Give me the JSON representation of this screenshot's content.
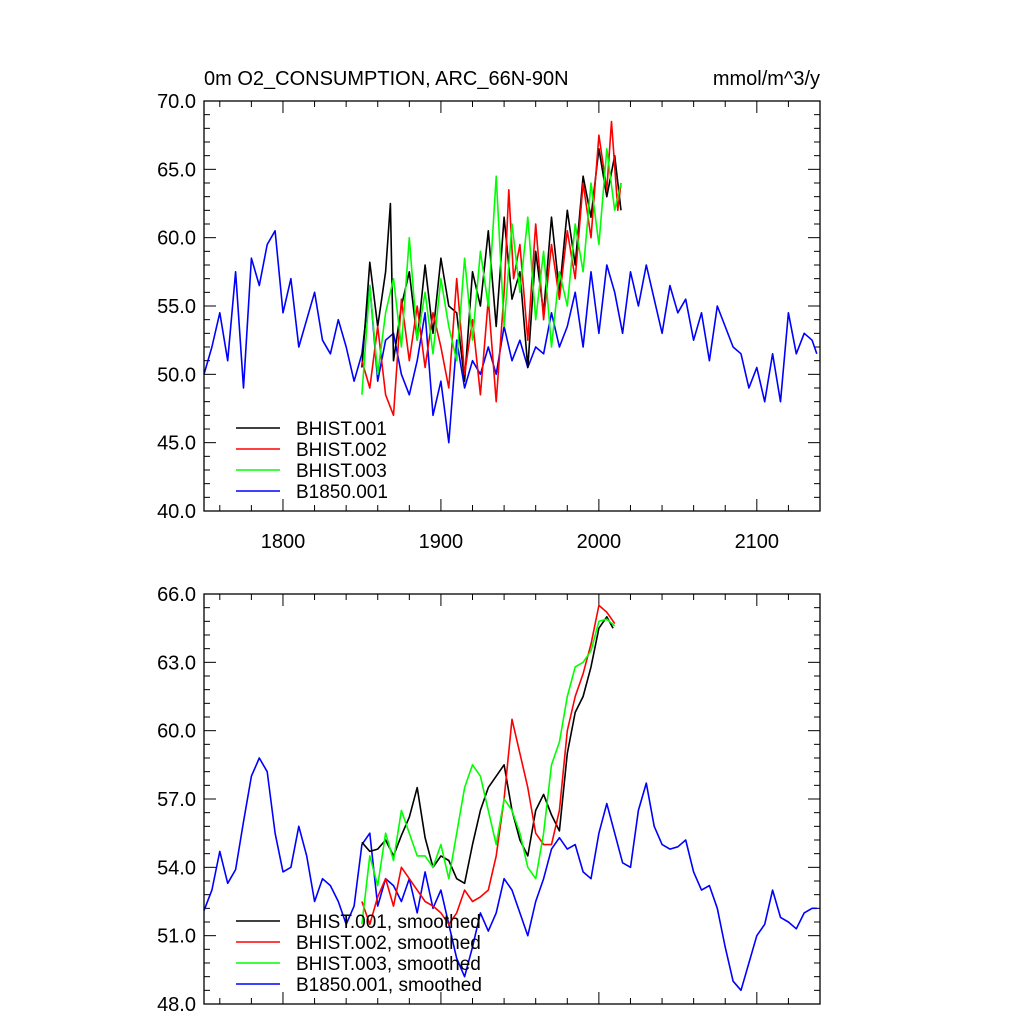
{
  "chart_data": [
    {
      "type": "line",
      "title": "0m O2_CONSUMPTION, ARC_66N-90N",
      "units": "mmol/m^3/y",
      "xlim": [
        1750,
        2140
      ],
      "ylim": [
        40,
        70
      ],
      "xticks": [
        1800,
        1900,
        2000,
        2100
      ],
      "yticks": [
        40,
        45,
        50,
        55,
        60,
        65,
        70
      ],
      "xtick_labels": [
        "1800",
        "1900",
        "2000",
        "2100"
      ],
      "ytick_labels": [
        "40.0",
        "45.0",
        "50.0",
        "55.0",
        "60.0",
        "65.0",
        "70.0"
      ],
      "legend_position": "bottom-left",
      "series": [
        {
          "name": "BHIST.001",
          "color": "#000000",
          "x": [
            1850,
            1855,
            1860,
            1865,
            1868,
            1870,
            1875,
            1880,
            1885,
            1890,
            1895,
            1900,
            1905,
            1910,
            1915,
            1920,
            1925,
            1930,
            1935,
            1940,
            1945,
            1950,
            1955,
            1960,
            1965,
            1970,
            1975,
            1980,
            1985,
            1990,
            1995,
            2000,
            2005,
            2010,
            2014
          ],
          "y": [
            50.5,
            58.2,
            53.5,
            57.5,
            62.5,
            51.0,
            55.0,
            57.5,
            52.5,
            58.0,
            53.0,
            58.5,
            55.0,
            54.5,
            49.5,
            57.5,
            55.0,
            60.5,
            53.5,
            61.5,
            55.5,
            57.5,
            50.5,
            59.0,
            54.5,
            61.5,
            56.0,
            62.0,
            58.0,
            64.5,
            61.5,
            66.5,
            63.0,
            66.0,
            62.0
          ]
        },
        {
          "name": "BHIST.002",
          "color": "#ff0000",
          "x": [
            1850,
            1855,
            1860,
            1865,
            1870,
            1875,
            1880,
            1885,
            1890,
            1895,
            1900,
            1905,
            1910,
            1915,
            1920,
            1925,
            1930,
            1935,
            1940,
            1943,
            1946,
            1950,
            1955,
            1960,
            1965,
            1970,
            1975,
            1980,
            1985,
            1990,
            1995,
            2000,
            2005,
            2008,
            2012,
            2014
          ],
          "y": [
            51.0,
            49.0,
            53.5,
            48.5,
            47.0,
            55.5,
            51.0,
            55.0,
            50.5,
            54.5,
            52.0,
            49.0,
            57.0,
            50.0,
            54.0,
            48.5,
            55.5,
            48.0,
            56.0,
            63.5,
            57.0,
            59.5,
            52.5,
            61.0,
            54.0,
            59.5,
            55.5,
            60.5,
            57.0,
            64.0,
            60.0,
            67.5,
            63.5,
            68.5,
            62.0,
            64.0
          ]
        },
        {
          "name": "BHIST.003",
          "color": "#00ff00",
          "x": [
            1850,
            1855,
            1860,
            1865,
            1870,
            1875,
            1880,
            1885,
            1890,
            1895,
            1900,
            1905,
            1910,
            1915,
            1920,
            1925,
            1930,
            1935,
            1940,
            1945,
            1950,
            1955,
            1960,
            1965,
            1970,
            1975,
            1980,
            1985,
            1990,
            1995,
            2000,
            2005,
            2010,
            2014
          ],
          "y": [
            48.5,
            56.5,
            50.0,
            54.5,
            57.0,
            52.0,
            60.0,
            52.5,
            56.0,
            51.5,
            57.0,
            53.5,
            51.0,
            58.5,
            52.5,
            59.0,
            55.0,
            64.5,
            53.5,
            61.0,
            56.0,
            61.5,
            54.0,
            59.0,
            52.0,
            57.5,
            55.0,
            61.0,
            57.5,
            64.0,
            59.5,
            66.5,
            62.0,
            64.0
          ]
        },
        {
          "name": "B1850.001",
          "color": "#0000ff",
          "x": [
            1750,
            1755,
            1760,
            1765,
            1770,
            1775,
            1780,
            1785,
            1790,
            1795,
            1800,
            1805,
            1810,
            1815,
            1820,
            1825,
            1830,
            1835,
            1840,
            1845,
            1850,
            1855,
            1860,
            1865,
            1870,
            1875,
            1880,
            1885,
            1890,
            1895,
            1900,
            1905,
            1910,
            1915,
            1920,
            1925,
            1930,
            1935,
            1940,
            1945,
            1950,
            1955,
            1960,
            1965,
            1970,
            1975,
            1980,
            1985,
            1990,
            1995,
            2000,
            2005,
            2010,
            2015,
            2020,
            2025,
            2030,
            2035,
            2040,
            2045,
            2050,
            2055,
            2060,
            2065,
            2070,
            2075,
            2080,
            2085,
            2090,
            2095,
            2100,
            2105,
            2110,
            2115,
            2120,
            2125,
            2130,
            2135,
            2138
          ],
          "y": [
            50.0,
            52.0,
            54.5,
            51.0,
            57.5,
            49.0,
            58.5,
            56.5,
            59.5,
            60.5,
            54.5,
            57.0,
            52.0,
            54.0,
            56.0,
            52.5,
            51.5,
            54.0,
            52.0,
            49.5,
            51.5,
            56.5,
            49.5,
            52.5,
            53.0,
            50.0,
            48.5,
            51.0,
            54.5,
            47.0,
            49.5,
            45.0,
            52.5,
            49.0,
            51.0,
            50.0,
            52.0,
            50.0,
            53.5,
            51.0,
            52.5,
            50.5,
            52.0,
            51.5,
            54.5,
            52.0,
            53.5,
            56.0,
            52.0,
            57.5,
            53.0,
            58.0,
            56.0,
            53.0,
            57.5,
            55.0,
            58.0,
            55.5,
            53.0,
            56.5,
            54.5,
            55.5,
            52.5,
            54.5,
            51.0,
            55.0,
            53.5,
            52.0,
            51.5,
            49.0,
            50.5,
            48.0,
            51.5,
            48.0,
            54.5,
            51.5,
            53.0,
            52.5,
            51.5
          ]
        }
      ]
    },
    {
      "type": "line",
      "xlim": [
        1750,
        2140
      ],
      "ylim": [
        48,
        66
      ],
      "xticks": [
        1800,
        1900,
        2000,
        2100
      ],
      "yticks": [
        48,
        51,
        54,
        57,
        60,
        63,
        66
      ],
      "ytick_labels": [
        "48.0",
        "51.0",
        "54.0",
        "57.0",
        "60.0",
        "63.0",
        "66.0"
      ],
      "legend_position": "bottom-left",
      "series": [
        {
          "name": "BHIST.001, smoothed",
          "color": "#000000",
          "x": [
            1850,
            1855,
            1860,
            1865,
            1870,
            1875,
            1880,
            1885,
            1890,
            1895,
            1900,
            1905,
            1910,
            1915,
            1920,
            1925,
            1930,
            1935,
            1940,
            1945,
            1950,
            1955,
            1960,
            1965,
            1970,
            1975,
            1980,
            1985,
            1990,
            1995,
            2000,
            2005,
            2009
          ],
          "y": [
            55.1,
            54.7,
            54.8,
            55.2,
            54.5,
            55.4,
            56.2,
            57.5,
            55.3,
            54.0,
            54.5,
            54.3,
            53.5,
            53.3,
            55.0,
            56.5,
            57.5,
            58.0,
            58.5,
            56.5,
            55.2,
            54.5,
            56.5,
            57.2,
            56.3,
            55.6,
            59.0,
            60.8,
            61.5,
            62.8,
            64.5,
            65.0,
            64.5
          ]
        },
        {
          "name": "BHIST.002, smoothed",
          "color": "#ff0000",
          "x": [
            1850,
            1855,
            1860,
            1865,
            1870,
            1875,
            1880,
            1885,
            1890,
            1895,
            1900,
            1905,
            1910,
            1915,
            1920,
            1925,
            1930,
            1935,
            1940,
            1945,
            1950,
            1955,
            1960,
            1965,
            1970,
            1975,
            1980,
            1985,
            1990,
            1995,
            2000,
            2005,
            2010
          ],
          "y": [
            52.5,
            51.5,
            52.7,
            53.5,
            52.3,
            54.0,
            53.5,
            53.0,
            52.5,
            52.3,
            52.0,
            51.5,
            52.0,
            53.0,
            52.5,
            52.7,
            53.0,
            54.5,
            57.0,
            60.5,
            59.0,
            57.5,
            55.5,
            55.0,
            55.0,
            56.5,
            60.0,
            61.5,
            62.5,
            63.8,
            65.5,
            65.2,
            64.7
          ]
        },
        {
          "name": "BHIST.003, smoothed",
          "color": "#00ff00",
          "x": [
            1850,
            1855,
            1860,
            1865,
            1870,
            1875,
            1880,
            1885,
            1890,
            1895,
            1900,
            1905,
            1910,
            1915,
            1920,
            1925,
            1930,
            1935,
            1940,
            1945,
            1950,
            1955,
            1960,
            1965,
            1970,
            1975,
            1980,
            1985,
            1990,
            1995,
            2000,
            2005,
            2010
          ],
          "y": [
            51.5,
            54.5,
            53.2,
            55.5,
            54.3,
            56.5,
            55.5,
            54.5,
            54.5,
            54.0,
            55.0,
            53.5,
            55.5,
            57.5,
            58.5,
            58.0,
            56.5,
            55.0,
            57.0,
            56.5,
            55.5,
            54.0,
            53.5,
            55.5,
            58.5,
            59.5,
            61.5,
            62.8,
            63.0,
            63.5,
            64.8,
            64.9,
            64.6
          ]
        },
        {
          "name": "B1850.001, smoothed",
          "color": "#0000ff",
          "x": [
            1750,
            1755,
            1760,
            1765,
            1770,
            1775,
            1780,
            1785,
            1790,
            1795,
            1800,
            1805,
            1810,
            1815,
            1820,
            1825,
            1830,
            1835,
            1840,
            1845,
            1850,
            1855,
            1860,
            1865,
            1870,
            1875,
            1880,
            1885,
            1890,
            1895,
            1900,
            1905,
            1910,
            1915,
            1920,
            1925,
            1930,
            1935,
            1940,
            1945,
            1950,
            1955,
            1960,
            1965,
            1970,
            1975,
            1980,
            1985,
            1990,
            1995,
            2000,
            2005,
            2010,
            2015,
            2020,
            2025,
            2030,
            2035,
            2040,
            2045,
            2050,
            2055,
            2060,
            2065,
            2070,
            2075,
            2080,
            2085,
            2090,
            2095,
            2100,
            2105,
            2110,
            2115,
            2120,
            2125,
            2130,
            2135,
            2138
          ],
          "y": [
            52.1,
            53.0,
            54.7,
            53.3,
            53.9,
            56.0,
            58.0,
            58.8,
            58.2,
            55.5,
            53.8,
            54.0,
            55.8,
            54.5,
            52.5,
            53.5,
            53.2,
            52.5,
            51.5,
            52.3,
            55.0,
            55.5,
            52.3,
            53.5,
            53.2,
            52.5,
            53.5,
            52.0,
            53.8,
            52.2,
            53.0,
            51.5,
            50.0,
            49.2,
            50.5,
            52.0,
            51.2,
            52.0,
            53.5,
            53.0,
            52.0,
            51.0,
            52.5,
            53.5,
            54.8,
            55.3,
            54.8,
            55.0,
            53.8,
            53.5,
            55.5,
            56.8,
            55.5,
            54.2,
            54.0,
            56.5,
            57.7,
            55.8,
            55.0,
            54.8,
            54.9,
            55.2,
            53.8,
            53.0,
            53.2,
            52.2,
            50.5,
            49.0,
            48.6,
            49.8,
            51.0,
            51.5,
            53.0,
            51.8,
            51.6,
            51.3,
            52.0,
            52.2,
            52.2
          ]
        }
      ]
    }
  ]
}
